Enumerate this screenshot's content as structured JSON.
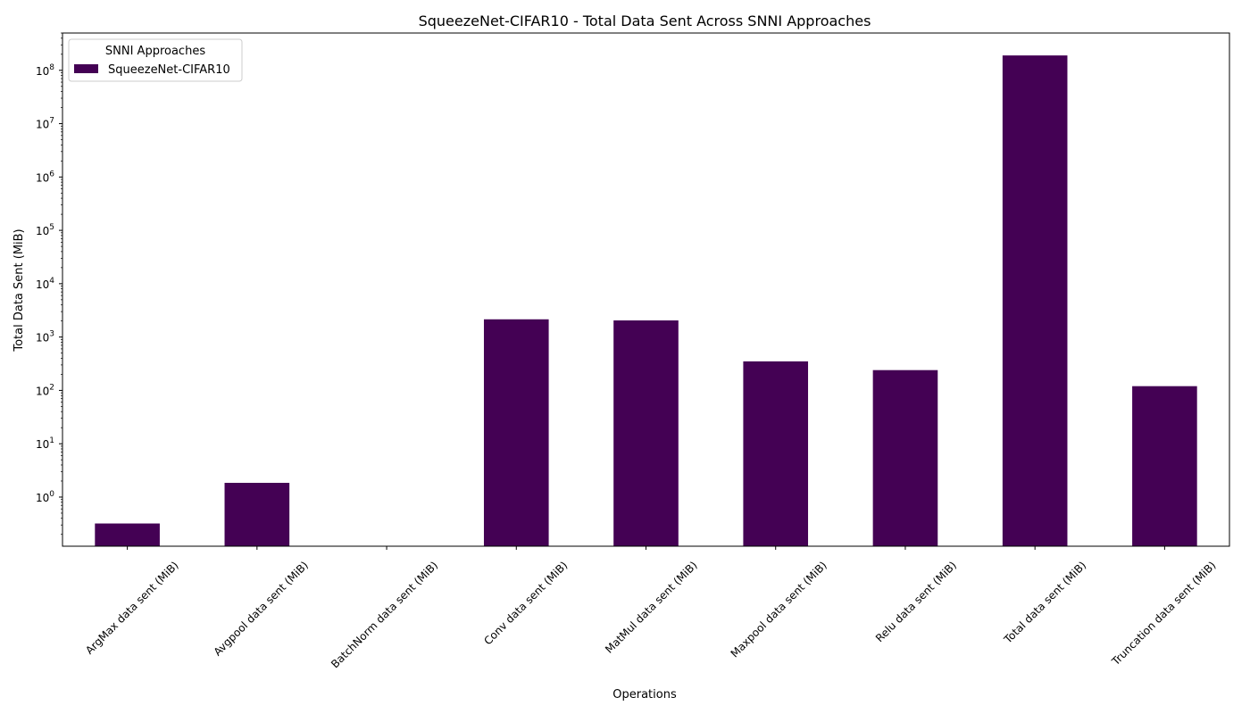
{
  "chart_data": {
    "type": "bar",
    "title": "SqueezeNet-CIFAR10 - Total Data Sent Across SNNI Approaches",
    "xlabel": "Operations",
    "ylabel": "Total Data Sent (MiB)",
    "yscale": "log",
    "ylim": [
      0.12,
      500000000
    ],
    "ytick_exponents": [
      0,
      1,
      2,
      3,
      4,
      5,
      6,
      7,
      8
    ],
    "categories": [
      "ArgMax data sent (MiB)",
      "Avgpool data sent (MiB)",
      "BatchNorm data sent (MiB)",
      "Conv data sent (MiB)",
      "MatMul data sent (MiB)",
      "Maxpool data sent (MiB)",
      "Relu data sent (MiB)",
      "Total data sent (MiB)",
      "Truncation data sent (MiB)"
    ],
    "series": [
      {
        "name": "SqueezeNet-CIFAR10",
        "color": "#440154",
        "values": [
          0.32,
          1.85,
          0,
          2150,
          2050,
          350,
          240,
          190000000,
          120
        ]
      }
    ],
    "legend": {
      "title": "SNNI Approaches",
      "placement": "top-left"
    },
    "grid": false
  }
}
